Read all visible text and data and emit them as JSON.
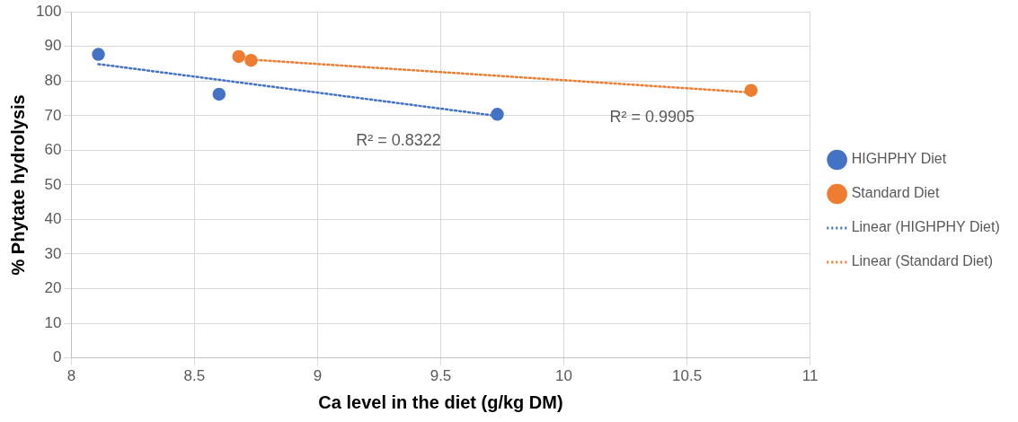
{
  "chart_data": {
    "type": "scatter",
    "xlabel": "Ca level in the diet (g/kg DM)",
    "ylabel": "% Phytate hydrolysis",
    "xlim": [
      8,
      11
    ],
    "xticks": [
      8,
      8.5,
      9,
      9.5,
      10,
      10.5,
      11
    ],
    "ylim": [
      0,
      100
    ],
    "yticks": [
      0,
      10,
      20,
      30,
      40,
      50,
      60,
      70,
      80,
      90,
      100
    ],
    "grid": true,
    "legend": "right",
    "marker": "circle",
    "series": [
      {
        "name": "HIGHPHY Diet",
        "color": "#4472c4",
        "x": [
          8.11,
          8.6,
          9.73
        ],
        "values": [
          87.7,
          76.2,
          70.4
        ]
      },
      {
        "name": "Standard Diet",
        "color": "#ed7d31",
        "x": [
          8.68,
          8.73,
          10.76
        ],
        "values": [
          87.1,
          86.0,
          77.3
        ]
      },
      {
        "name": "Linear (HIGHPHY Diet)",
        "type": "line",
        "line_style": "dotted",
        "marker": "none",
        "color": "#4472c4",
        "x": [
          8.11,
          9.73
        ],
        "values": [
          84.9,
          69.9
        ]
      },
      {
        "name": "Linear (Standard Diet)",
        "type": "line",
        "line_style": "dotted",
        "marker": "none",
        "color": "#ed7d31",
        "x": [
          8.73,
          10.76
        ],
        "values": [
          86.2,
          76.7
        ]
      }
    ],
    "annotations": [
      "R² = 0.8322",
      "R² = 0.9905"
    ]
  }
}
